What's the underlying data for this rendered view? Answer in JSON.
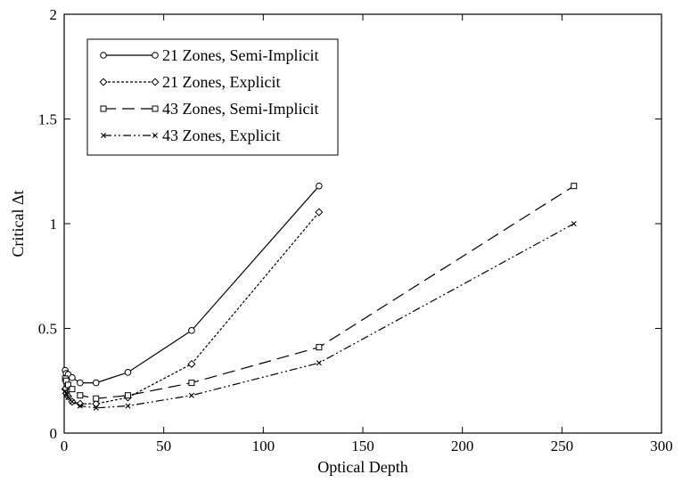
{
  "chart_data": {
    "type": "line",
    "title": "",
    "xlabel": "Optical Depth",
    "ylabel": "Critical Δt",
    "xlim": [
      0,
      300
    ],
    "ylim": [
      0,
      2
    ],
    "xticks": [
      0,
      50,
      100,
      150,
      200,
      250,
      300
    ],
    "yticks": [
      0,
      0.5,
      1,
      1.5,
      2
    ],
    "xtick_labels": [
      "0",
      "50",
      "100",
      "150",
      "200",
      "250",
      "300"
    ],
    "ytick_labels": [
      "0",
      "0.5",
      "1",
      "1.5",
      "2"
    ],
    "grid": false,
    "legend_position": "top-left",
    "series": [
      {
        "name": "21 Zones, Semi-Implicit",
        "line": "solid",
        "marker": "circle",
        "x": [
          0.5,
          1,
          2,
          4,
          8,
          16,
          32,
          64,
          128
        ],
        "y": [
          0.3,
          0.285,
          0.28,
          0.265,
          0.24,
          0.24,
          0.29,
          0.49,
          1.18
        ]
      },
      {
        "name": "21 Zones, Explicit",
        "line": "dotted",
        "marker": "diamond",
        "x": [
          0.5,
          1,
          2,
          4,
          8,
          16,
          32,
          64,
          128
        ],
        "y": [
          0.21,
          0.19,
          0.175,
          0.15,
          0.14,
          0.14,
          0.17,
          0.33,
          1.055
        ]
      },
      {
        "name": "43 Zones, Semi-Implicit",
        "line": "dashed",
        "marker": "square",
        "x": [
          0.5,
          1,
          2,
          4,
          8,
          16,
          32,
          64,
          128,
          256
        ],
        "y": [
          0.26,
          0.25,
          0.23,
          0.21,
          0.18,
          0.165,
          0.18,
          0.24,
          0.41,
          1.18
        ]
      },
      {
        "name": "43 Zones, Explicit",
        "line": "dash-dot-dot",
        "marker": "x",
        "x": [
          0.5,
          1,
          2,
          4,
          8,
          16,
          32,
          64,
          128,
          256
        ],
        "y": [
          0.2,
          0.19,
          0.17,
          0.15,
          0.13,
          0.12,
          0.13,
          0.18,
          0.335,
          1.0
        ]
      }
    ]
  }
}
